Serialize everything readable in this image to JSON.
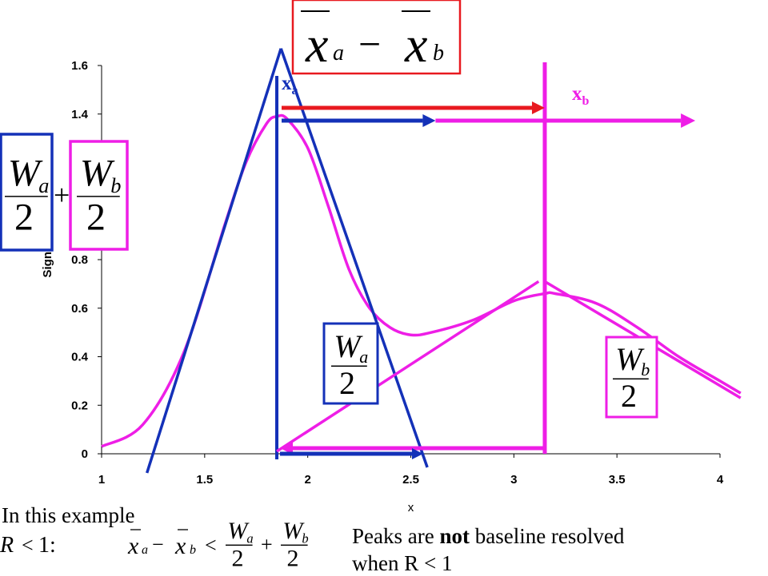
{
  "chart_data": {
    "type": "line",
    "xlabel": "x",
    "ylabel": "Signal",
    "xlim": [
      1,
      4
    ],
    "ylim": [
      0,
      1.6
    ],
    "x_ticks": [
      "1",
      "1.5",
      "2",
      "2.5",
      "3",
      "3.5",
      "4"
    ],
    "y_ticks": [
      "0",
      "0.2",
      "0.4",
      "0.6",
      "0.8",
      "1",
      "1.2",
      "1.4",
      "1.6"
    ],
    "grid": false,
    "series": [
      {
        "color": "#ee1ee6",
        "x": [
          1.0,
          1.2,
          1.4,
          1.6,
          1.7,
          1.8,
          1.85,
          1.9,
          2.0,
          2.1,
          2.2,
          2.3,
          2.4,
          2.5,
          2.6,
          2.8,
          3.0,
          3.15,
          3.2,
          3.4,
          3.6,
          3.8,
          4.0,
          4.1
        ],
        "y": [
          0.03,
          0.12,
          0.42,
          0.95,
          1.2,
          1.36,
          1.39,
          1.38,
          1.26,
          1.02,
          0.76,
          0.6,
          0.52,
          0.49,
          0.5,
          0.55,
          0.63,
          0.66,
          0.66,
          0.62,
          0.52,
          0.4,
          0.3,
          0.25
        ]
      }
    ],
    "annotations": {
      "peak_a_label": "x",
      "peak_a_sub": "a",
      "peak_b_label": "x",
      "peak_b_sub": "b",
      "peak_a_center": 1.85,
      "peak_b_center": 3.15,
      "tangent_a": {
        "apex": [
          1.87,
          1.67
        ],
        "base": [
          1.22,
          2.58
        ]
      },
      "tangent_b": {
        "apex": [
          3.15,
          0.71
        ],
        "left_base": 1.85,
        "right_end": [
          4.1,
          0.23
        ]
      }
    }
  },
  "equations": {
    "top_box": {
      "left_var": "x",
      "left_sub": "a",
      "minus": "−",
      "right_var": "x",
      "right_sub": "b"
    },
    "sum_box": {
      "W": "W",
      "sub_a": "a",
      "sub_b": "b",
      "denom": "2",
      "plus": "+"
    },
    "wa_box": {
      "W": "W",
      "sub": "a",
      "denom": "2"
    },
    "wb_box": {
      "W": "W",
      "sub": "b",
      "denom": "2"
    },
    "inequality": {
      "R": "R",
      "lt": "<",
      "one": "1:",
      "xa": "x",
      "a": "a",
      "minus": "−",
      "xb": "x",
      "b": "b",
      "lt2": "<",
      "W1": "W",
      "s1": "a",
      "two1": "2",
      "plus": "+",
      "W2": "W",
      "s2": "b",
      "two2": "2"
    }
  },
  "captions": {
    "example": "In this example",
    "peaks_prefix": "Peaks are ",
    "peaks_bold": "not",
    "peaks_suffix": " baseline resolved",
    "when": "when R < 1"
  },
  "colors": {
    "curve": "#ee1ee6",
    "blue": "#1431b8",
    "red": "#e8191f",
    "magenta": "#ee1ee6"
  }
}
